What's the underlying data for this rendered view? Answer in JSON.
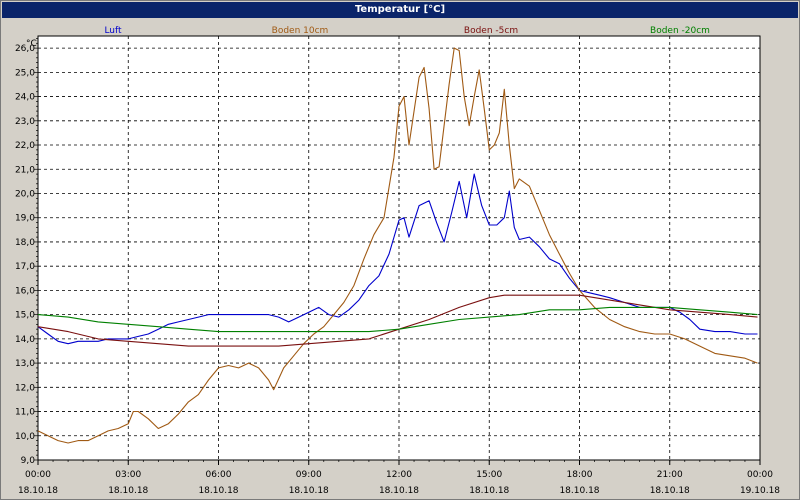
{
  "window": {
    "title": "Temperatur [°C]"
  },
  "chart_data": {
    "type": "line",
    "title": "Temperatur [°C]",
    "ylabel": "°C",
    "ylim": [
      9.0,
      26.5
    ],
    "xlim": [
      "18.10.18 00:00",
      "19.10.18 00:00"
    ],
    "grid": true,
    "legend_placement": "top",
    "y_ticks": [
      "9,0",
      "10,0",
      "11,0",
      "12,0",
      "13,0",
      "14,0",
      "15,0",
      "16,0",
      "17,0",
      "18,0",
      "19,0",
      "20,0",
      "21,0",
      "22,0",
      "23,0",
      "24,0",
      "25,0",
      "26,0"
    ],
    "x_ticks": [
      {
        "time": "00:00",
        "date": "18.10.18"
      },
      {
        "time": "03:00",
        "date": "18.10.18"
      },
      {
        "time": "06:00",
        "date": "18.10.18"
      },
      {
        "time": "09:00",
        "date": "18.10.18"
      },
      {
        "time": "12:00",
        "date": "18.10.18"
      },
      {
        "time": "15:00",
        "date": "18.10.18"
      },
      {
        "time": "18:00",
        "date": "18.10.18"
      },
      {
        "time": "21:00",
        "date": "18.10.18"
      },
      {
        "time": "00:00",
        "date": "19.10.18"
      }
    ],
    "series": [
      {
        "name": "Luft",
        "color": "#0000cc",
        "points": [
          [
            "18.10.18 00:00",
            14.5
          ],
          [
            "18.10.18 00:20",
            14.2
          ],
          [
            "18.10.18 00:40",
            13.9
          ],
          [
            "18.10.18 01:00",
            13.8
          ],
          [
            "18.10.18 01:20",
            13.9
          ],
          [
            "18.10.18 01:40",
            13.9
          ],
          [
            "18.10.18 02:00",
            13.9
          ],
          [
            "18.10.18 02:20",
            14.0
          ],
          [
            "18.10.18 02:40",
            14.0
          ],
          [
            "18.10.18 03:00",
            14.0
          ],
          [
            "18.10.18 03:20",
            14.1
          ],
          [
            "18.10.18 03:40",
            14.2
          ],
          [
            "18.10.18 04:00",
            14.4
          ],
          [
            "18.10.18 04:20",
            14.6
          ],
          [
            "18.10.18 04:40",
            14.7
          ],
          [
            "18.10.18 05:00",
            14.8
          ],
          [
            "18.10.18 05:20",
            14.9
          ],
          [
            "18.10.18 05:40",
            15.0
          ],
          [
            "18.10.18 06:00",
            15.0
          ],
          [
            "18.10.18 06:20",
            15.0
          ],
          [
            "18.10.18 06:40",
            15.0
          ],
          [
            "18.10.18 07:00",
            15.0
          ],
          [
            "18.10.18 07:20",
            15.0
          ],
          [
            "18.10.18 07:40",
            15.0
          ],
          [
            "18.10.18 08:00",
            14.9
          ],
          [
            "18.10.18 08:20",
            14.7
          ],
          [
            "18.10.18 08:40",
            14.9
          ],
          [
            "18.10.18 09:00",
            15.1
          ],
          [
            "18.10.18 09:20",
            15.3
          ],
          [
            "18.10.18 09:40",
            15.0
          ],
          [
            "18.10.18 10:00",
            14.9
          ],
          [
            "18.10.18 10:20",
            15.2
          ],
          [
            "18.10.18 10:40",
            15.6
          ],
          [
            "18.10.18 11:00",
            16.2
          ],
          [
            "18.10.18 11:20",
            16.6
          ],
          [
            "18.10.18 11:40",
            17.5
          ],
          [
            "18.10.18 12:00",
            18.9
          ],
          [
            "18.10.18 12:10",
            19.0
          ],
          [
            "18.10.18 12:20",
            18.2
          ],
          [
            "18.10.18 12:40",
            19.5
          ],
          [
            "18.10.18 13:00",
            19.7
          ],
          [
            "18.10.18 13:15",
            18.8
          ],
          [
            "18.10.18 13:30",
            18.0
          ],
          [
            "18.10.18 13:45",
            19.2
          ],
          [
            "18.10.18 14:00",
            20.5
          ],
          [
            "18.10.18 14:15",
            19.0
          ],
          [
            "18.10.18 14:30",
            20.8
          ],
          [
            "18.10.18 14:45",
            19.5
          ],
          [
            "18.10.18 15:00",
            18.7
          ],
          [
            "18.10.18 15:15",
            18.7
          ],
          [
            "18.10.18 15:30",
            19.0
          ],
          [
            "18.10.18 15:40",
            20.1
          ],
          [
            "18.10.18 15:50",
            18.6
          ],
          [
            "18.10.18 16:00",
            18.1
          ],
          [
            "18.10.18 16:20",
            18.2
          ],
          [
            "18.10.18 16:40",
            17.8
          ],
          [
            "18.10.18 17:00",
            17.3
          ],
          [
            "18.10.18 17:20",
            17.1
          ],
          [
            "18.10.18 17:40",
            16.5
          ],
          [
            "18.10.18 18:00",
            16.0
          ],
          [
            "18.10.18 18:20",
            15.9
          ],
          [
            "18.10.18 18:40",
            15.8
          ],
          [
            "18.10.18 19:00",
            15.7
          ],
          [
            "18.10.18 19:30",
            15.5
          ],
          [
            "18.10.18 20:00",
            15.3
          ],
          [
            "18.10.18 20:30",
            15.3
          ],
          [
            "18.10.18 21:00",
            15.3
          ],
          [
            "18.10.18 21:20",
            15.1
          ],
          [
            "18.10.18 21:40",
            14.8
          ],
          [
            "18.10.18 22:00",
            14.4
          ],
          [
            "18.10.18 22:30",
            14.3
          ],
          [
            "18.10.18 23:00",
            14.3
          ],
          [
            "18.10.18 23:30",
            14.2
          ],
          [
            "18.10.18 23:55",
            14.2
          ]
        ]
      },
      {
        "name": "Boden 10cm",
        "color": "#a05a14",
        "points": [
          [
            "18.10.18 00:00",
            10.2
          ],
          [
            "18.10.18 00:20",
            10.0
          ],
          [
            "18.10.18 00:40",
            9.8
          ],
          [
            "18.10.18 01:00",
            9.7
          ],
          [
            "18.10.18 01:20",
            9.8
          ],
          [
            "18.10.18 01:40",
            9.8
          ],
          [
            "18.10.18 02:00",
            10.0
          ],
          [
            "18.10.18 02:20",
            10.2
          ],
          [
            "18.10.18 02:40",
            10.3
          ],
          [
            "18.10.18 03:00",
            10.5
          ],
          [
            "18.10.18 03:10",
            11.0
          ],
          [
            "18.10.18 03:20",
            11.0
          ],
          [
            "18.10.18 03:40",
            10.7
          ],
          [
            "18.10.18 04:00",
            10.3
          ],
          [
            "18.10.18 04:20",
            10.5
          ],
          [
            "18.10.18 04:40",
            10.9
          ],
          [
            "18.10.18 05:00",
            11.4
          ],
          [
            "18.10.18 05:20",
            11.7
          ],
          [
            "18.10.18 05:40",
            12.3
          ],
          [
            "18.10.18 06:00",
            12.8
          ],
          [
            "18.10.18 06:20",
            12.9
          ],
          [
            "18.10.18 06:40",
            12.8
          ],
          [
            "18.10.18 07:00",
            13.0
          ],
          [
            "18.10.18 07:20",
            12.8
          ],
          [
            "18.10.18 07:40",
            12.3
          ],
          [
            "18.10.18 07:50",
            11.9
          ],
          [
            "18.10.18 08:10",
            12.8
          ],
          [
            "18.10.18 08:30",
            13.3
          ],
          [
            "18.10.18 08:50",
            13.8
          ],
          [
            "18.10.18 09:10",
            14.2
          ],
          [
            "18.10.18 09:30",
            14.5
          ],
          [
            "18.10.18 09:50",
            15.0
          ],
          [
            "18.10.18 10:10",
            15.5
          ],
          [
            "18.10.18 10:30",
            16.2
          ],
          [
            "18.10.18 10:50",
            17.3
          ],
          [
            "18.10.18 11:10",
            18.3
          ],
          [
            "18.10.18 11:30",
            19.0
          ],
          [
            "18.10.18 11:50",
            21.5
          ],
          [
            "18.10.18 12:00",
            23.6
          ],
          [
            "18.10.18 12:10",
            24.0
          ],
          [
            "18.10.18 12:20",
            22.0
          ],
          [
            "18.10.18 12:40",
            24.8
          ],
          [
            "18.10.18 12:50",
            25.2
          ],
          [
            "18.10.18 13:00",
            23.5
          ],
          [
            "18.10.18 13:10",
            21.0
          ],
          [
            "18.10.18 13:20",
            21.1
          ],
          [
            "18.10.18 13:40",
            24.5
          ],
          [
            "18.10.18 13:50",
            26.0
          ],
          [
            "18.10.18 14:00",
            25.9
          ],
          [
            "18.10.18 14:10",
            24.0
          ],
          [
            "18.10.18 14:20",
            22.8
          ],
          [
            "18.10.18 14:30",
            24.0
          ],
          [
            "18.10.18 14:40",
            25.1
          ],
          [
            "18.10.18 14:50",
            23.5
          ],
          [
            "18.10.18 15:00",
            21.8
          ],
          [
            "18.10.18 15:10",
            22.0
          ],
          [
            "18.10.18 15:20",
            22.5
          ],
          [
            "18.10.18 15:30",
            24.3
          ],
          [
            "18.10.18 15:40",
            22.0
          ],
          [
            "18.10.18 15:50",
            20.2
          ],
          [
            "18.10.18 16:00",
            20.6
          ],
          [
            "18.10.18 16:20",
            20.3
          ],
          [
            "18.10.18 16:40",
            19.3
          ],
          [
            "18.10.18 17:00",
            18.3
          ],
          [
            "18.10.18 17:20",
            17.5
          ],
          [
            "18.10.18 17:40",
            16.7
          ],
          [
            "18.10.18 18:00",
            16.0
          ],
          [
            "18.10.18 18:30",
            15.3
          ],
          [
            "18.10.18 19:00",
            14.8
          ],
          [
            "18.10.18 19:30",
            14.5
          ],
          [
            "18.10.18 20:00",
            14.3
          ],
          [
            "18.10.18 20:30",
            14.2
          ],
          [
            "18.10.18 21:00",
            14.2
          ],
          [
            "18.10.18 21:30",
            14.0
          ],
          [
            "18.10.18 22:00",
            13.7
          ],
          [
            "18.10.18 22:30",
            13.4
          ],
          [
            "18.10.18 23:00",
            13.3
          ],
          [
            "18.10.18 23:30",
            13.2
          ],
          [
            "18.10.18 23:55",
            13.0
          ]
        ]
      },
      {
        "name": "Boden -5cm",
        "color": "#7a1010",
        "points": [
          [
            "18.10.18 00:00",
            14.5
          ],
          [
            "18.10.18 01:00",
            14.3
          ],
          [
            "18.10.18 02:00",
            14.0
          ],
          [
            "18.10.18 03:00",
            13.9
          ],
          [
            "18.10.18 04:00",
            13.8
          ],
          [
            "18.10.18 05:00",
            13.7
          ],
          [
            "18.10.18 06:00",
            13.7
          ],
          [
            "18.10.18 07:00",
            13.7
          ],
          [
            "18.10.18 08:00",
            13.7
          ],
          [
            "18.10.18 09:00",
            13.8
          ],
          [
            "18.10.18 10:00",
            13.9
          ],
          [
            "18.10.18 11:00",
            14.0
          ],
          [
            "18.10.18 12:00",
            14.4
          ],
          [
            "18.10.18 13:00",
            14.8
          ],
          [
            "18.10.18 14:00",
            15.3
          ],
          [
            "18.10.18 15:00",
            15.7
          ],
          [
            "18.10.18 15:30",
            15.8
          ],
          [
            "18.10.18 16:00",
            15.8
          ],
          [
            "18.10.18 17:00",
            15.8
          ],
          [
            "18.10.18 18:00",
            15.8
          ],
          [
            "18.10.18 19:00",
            15.6
          ],
          [
            "18.10.18 20:00",
            15.4
          ],
          [
            "18.10.18 21:00",
            15.2
          ],
          [
            "18.10.18 22:00",
            15.1
          ],
          [
            "18.10.18 23:00",
            15.0
          ],
          [
            "18.10.18 23:55",
            14.9
          ]
        ]
      },
      {
        "name": "Boden -20cm",
        "color": "#008000",
        "points": [
          [
            "18.10.18 00:00",
            15.0
          ],
          [
            "18.10.18 01:00",
            14.9
          ],
          [
            "18.10.18 02:00",
            14.7
          ],
          [
            "18.10.18 03:00",
            14.6
          ],
          [
            "18.10.18 04:00",
            14.5
          ],
          [
            "18.10.18 05:00",
            14.4
          ],
          [
            "18.10.18 06:00",
            14.3
          ],
          [
            "18.10.18 07:00",
            14.3
          ],
          [
            "18.10.18 08:00",
            14.3
          ],
          [
            "18.10.18 09:00",
            14.3
          ],
          [
            "18.10.18 10:00",
            14.3
          ],
          [
            "18.10.18 11:00",
            14.3
          ],
          [
            "18.10.18 12:00",
            14.4
          ],
          [
            "18.10.18 13:00",
            14.6
          ],
          [
            "18.10.18 14:00",
            14.8
          ],
          [
            "18.10.18 15:00",
            14.9
          ],
          [
            "18.10.18 16:00",
            15.0
          ],
          [
            "18.10.18 17:00",
            15.2
          ],
          [
            "18.10.18 18:00",
            15.2
          ],
          [
            "18.10.18 19:00",
            15.3
          ],
          [
            "18.10.18 20:00",
            15.3
          ],
          [
            "18.10.18 21:00",
            15.3
          ],
          [
            "18.10.18 22:00",
            15.2
          ],
          [
            "18.10.18 23:00",
            15.1
          ],
          [
            "18.10.18 23:55",
            15.0
          ]
        ]
      }
    ]
  }
}
